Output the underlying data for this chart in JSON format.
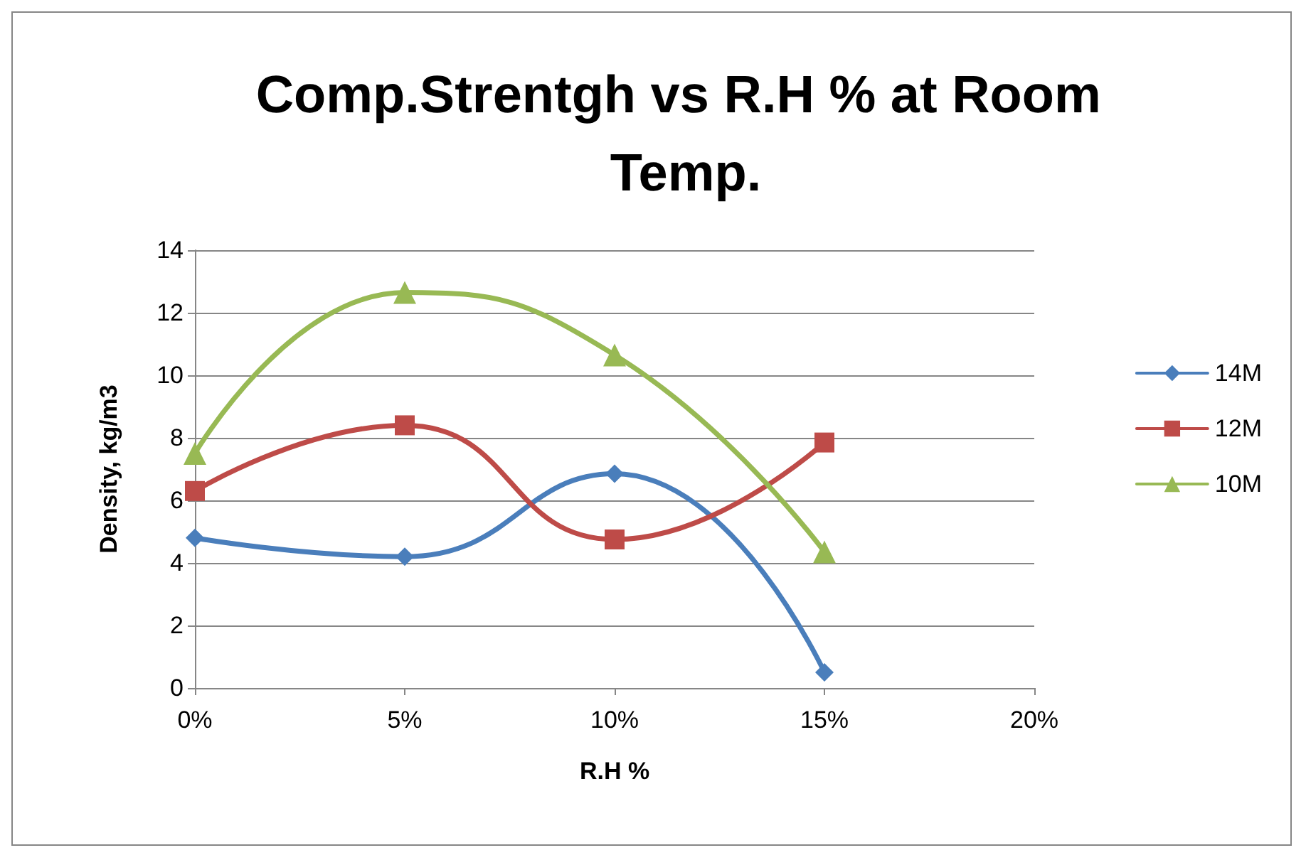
{
  "chart_data": {
    "type": "line",
    "title": "Comp.Strentgh vs R.H % at Room Temp.",
    "xlabel": "R.H %",
    "ylabel": "Density, kg/m3",
    "x": [
      0,
      5,
      10,
      15
    ],
    "series": [
      {
        "name": "14M",
        "color": "#4a7ebb",
        "marker": "diamond",
        "values": [
          4.8,
          4.2,
          6.85,
          0.5
        ]
      },
      {
        "name": "12M",
        "color": "#be4b48",
        "marker": "square",
        "values": [
          6.3,
          8.4,
          4.75,
          7.85
        ]
      },
      {
        "name": "10M",
        "color": "#98b954",
        "marker": "triangle",
        "values": [
          7.5,
          12.65,
          10.65,
          4.35
        ]
      }
    ],
    "xlim": [
      0,
      20
    ],
    "xticks": [
      {
        "value": 0,
        "label": "0%"
      },
      {
        "value": 5,
        "label": "5%"
      },
      {
        "value": 10,
        "label": "10%"
      },
      {
        "value": 15,
        "label": "15%"
      },
      {
        "value": 20,
        "label": "20%"
      }
    ],
    "ylim": [
      0,
      14
    ],
    "yticks": [
      0,
      2,
      4,
      6,
      8,
      10,
      12,
      14
    ],
    "grid": "y",
    "legend": "right"
  }
}
